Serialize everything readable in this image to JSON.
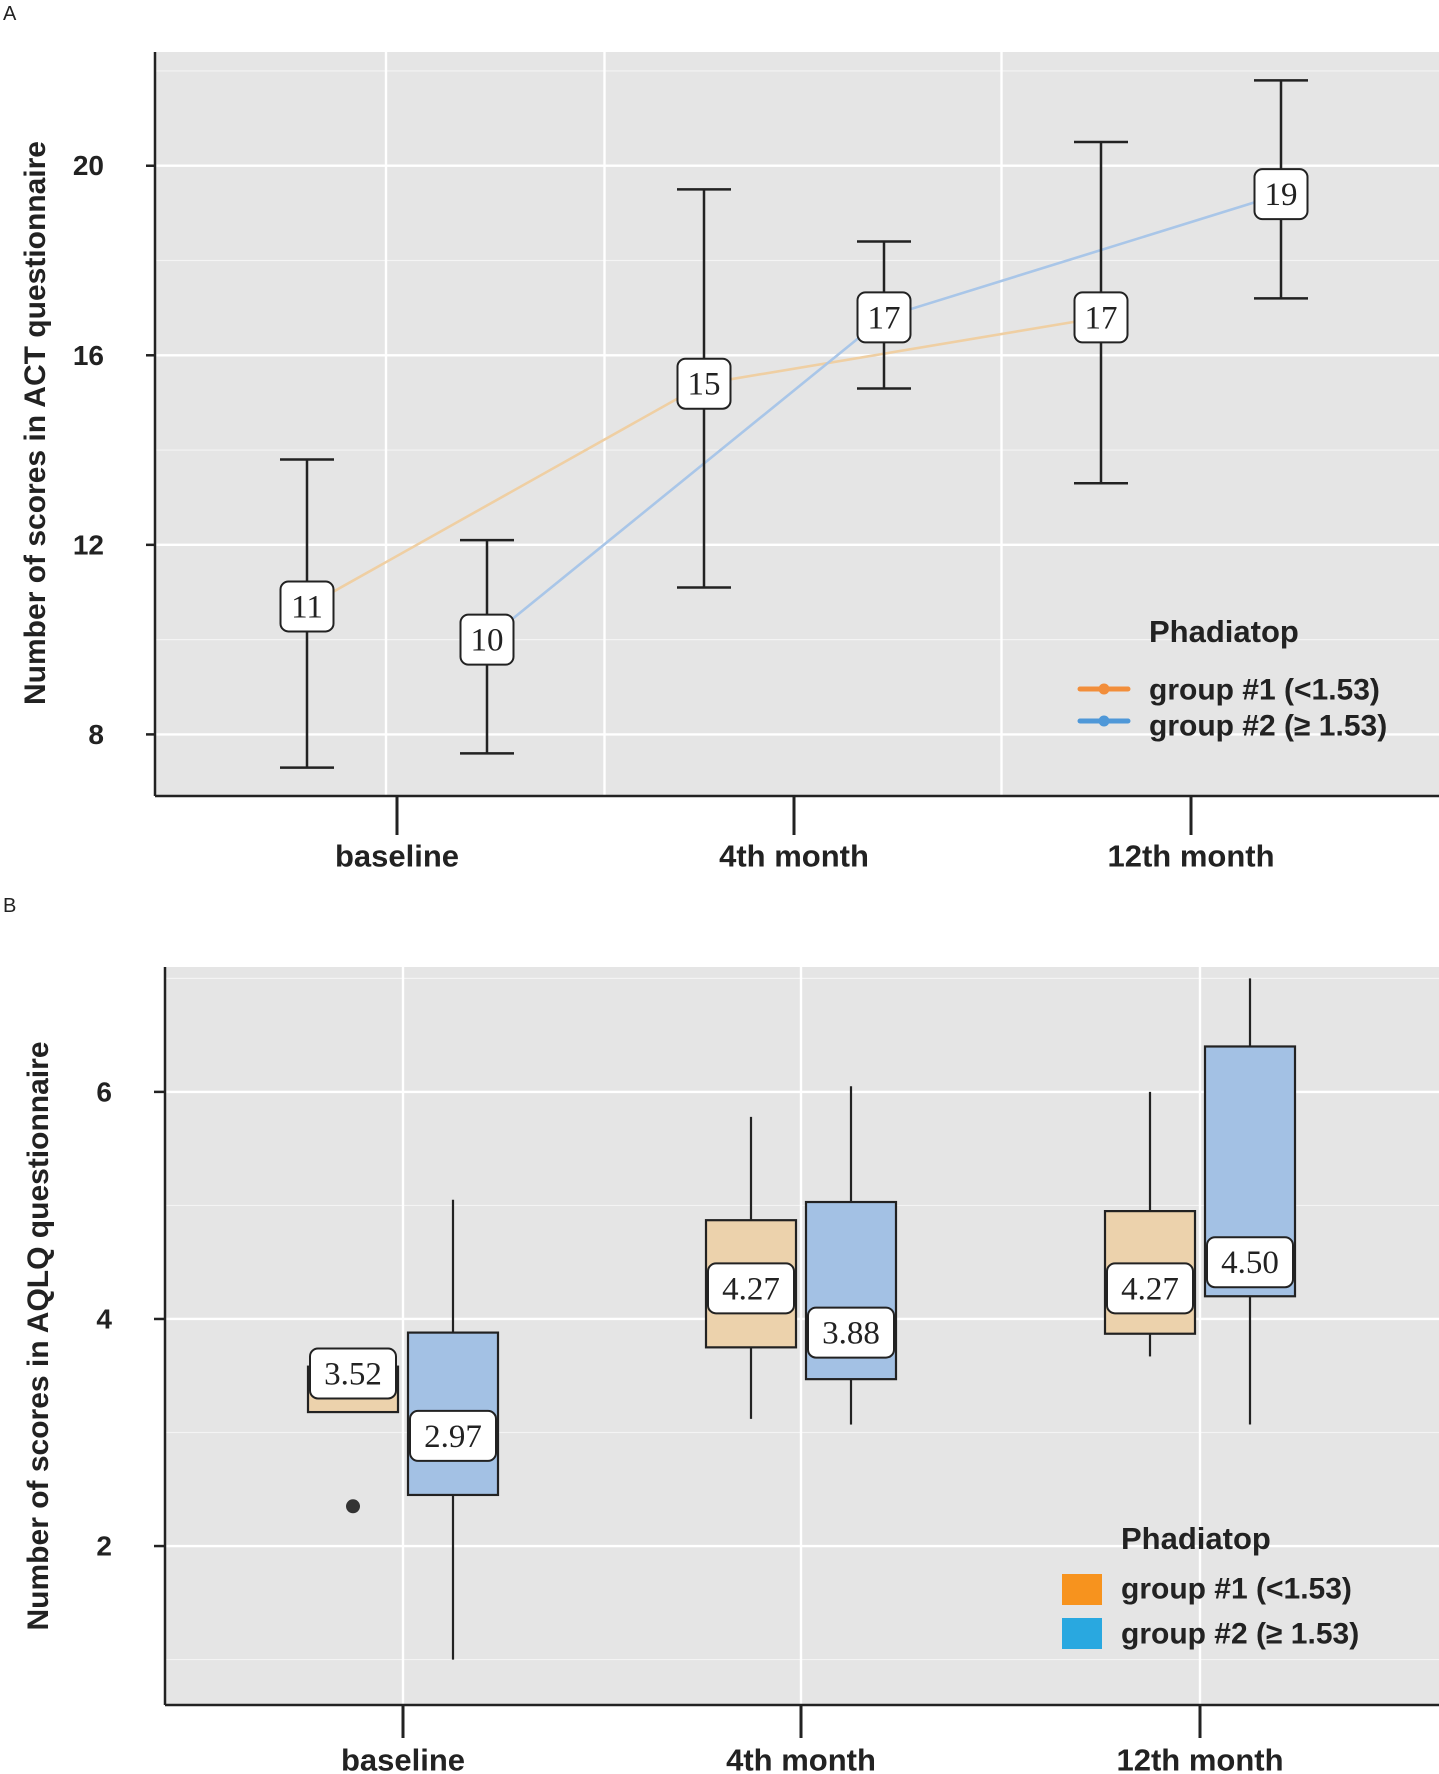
{
  "panels": {
    "a": {
      "letter": "A",
      "legend": {
        "title": "Phadiatop",
        "items": [
          {
            "label": "group #1 (<1.53)",
            "color": "#f28e3b"
          },
          {
            "label": "group #2 (≥ 1.53)",
            "color": "#4f98d8"
          }
        ]
      }
    },
    "b": {
      "letter": "B",
      "legend": {
        "title": "Phadiatop",
        "items": [
          {
            "label": "group #1 (<1.53)",
            "color": "#f7931e"
          },
          {
            "label": "group #2 (≥ 1.53)",
            "color": "#29a8e0"
          }
        ]
      }
    }
  },
  "chart_data": [
    {
      "type": "line",
      "panel": "A",
      "title": "",
      "xlabel": "",
      "ylabel": "Number of scores in ACT questionnaire",
      "categories": [
        "baseline",
        "4th month",
        "12th month"
      ],
      "ylim": [
        6.7,
        22.4
      ],
      "yticks": [
        8,
        12,
        16,
        20
      ],
      "grid": true,
      "legend_title": "Phadiatop",
      "legend_position": "bottom-right",
      "series": [
        {
          "name": "group #1 (<1.53)",
          "line_color": "#efcfa3",
          "values": [
            10.7,
            15.4,
            16.8
          ],
          "error_low": [
            7.3,
            11.1,
            13.3
          ],
          "error_high": [
            13.8,
            19.5,
            20.5
          ],
          "labels": [
            "11",
            "15",
            "17"
          ]
        },
        {
          "name": "group #2 (≥ 1.53)",
          "line_color": "#a9c6e8",
          "values": [
            10.0,
            16.8,
            19.4
          ],
          "error_low": [
            7.6,
            15.3,
            17.2
          ],
          "error_high": [
            12.1,
            18.4,
            21.8
          ],
          "labels": [
            "10",
            "17",
            "19"
          ]
        }
      ]
    },
    {
      "type": "box",
      "panel": "B",
      "title": "",
      "xlabel": "",
      "ylabel": "Number of scores in AQLQ questionnaire",
      "categories": [
        "baseline",
        "4th month",
        "12th month"
      ],
      "ylim": [
        0.6,
        7.1
      ],
      "yticks": [
        2,
        4,
        6
      ],
      "grid": true,
      "legend_title": "Phadiatop",
      "legend_position": "bottom-right",
      "series": [
        {
          "name": "group #1 (<1.53)",
          "fill": "#ecd2ac",
          "boxes": [
            {
              "whisker_low": 3.18,
              "q1": 3.18,
              "q3": 3.58,
              "whisker_high": 3.58,
              "label": "3.52",
              "outliers": [
                2.35
              ]
            },
            {
              "whisker_low": 3.12,
              "q1": 3.75,
              "q3": 4.87,
              "whisker_high": 5.78,
              "label": "4.27",
              "outliers": []
            },
            {
              "whisker_low": 3.67,
              "q1": 3.87,
              "q3": 4.95,
              "whisker_high": 6.0,
              "label": "4.27",
              "outliers": []
            }
          ]
        },
        {
          "name": "group #2 (≥ 1.53)",
          "fill": "#a3c1e4",
          "boxes": [
            {
              "whisker_low": 1.0,
              "q1": 2.45,
              "q3": 3.88,
              "whisker_high": 5.05,
              "label": "2.97",
              "outliers": []
            },
            {
              "whisker_low": 3.07,
              "q1": 3.47,
              "q3": 5.03,
              "whisker_high": 6.05,
              "label": "3.88",
              "outliers": []
            },
            {
              "whisker_low": 3.07,
              "q1": 4.2,
              "q3": 6.4,
              "whisker_high": 7.0,
              "label": "4.50",
              "outliers": []
            }
          ]
        }
      ]
    }
  ]
}
